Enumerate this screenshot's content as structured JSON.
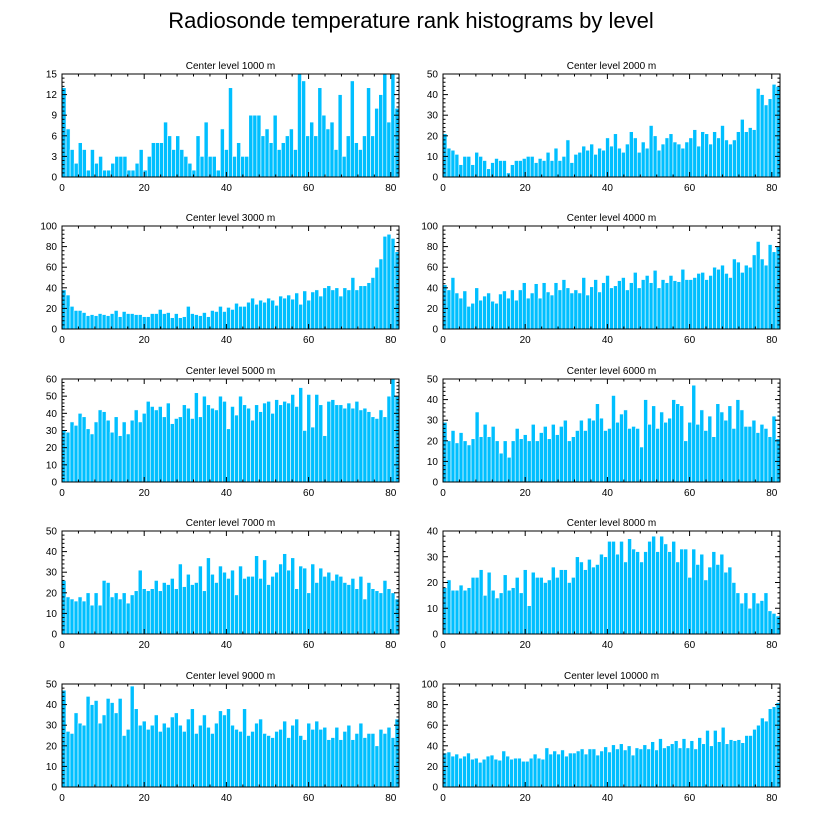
{
  "title": "Radiosonde temperature rank histograms by level",
  "bar_color": "#00bfff",
  "bar_edge_color": "#ffffff",
  "chart_data": [
    {
      "type": "bar",
      "title": "Center level 1000 m",
      "xlim": [
        0,
        82
      ],
      "ylim": [
        0,
        15
      ],
      "xticks": [
        0,
        20,
        40,
        60,
        80
      ],
      "yticks": [
        0,
        3,
        6,
        9,
        12,
        15
      ],
      "values": [
        13,
        7,
        4,
        2,
        5,
        4,
        1,
        4,
        2,
        3,
        1,
        1,
        2,
        3,
        3,
        3,
        1,
        1,
        2,
        4,
        1,
        3,
        5,
        5,
        5,
        8,
        6,
        4,
        6,
        4,
        3,
        2,
        1,
        6,
        3,
        8,
        3,
        3,
        1,
        7,
        4,
        13,
        3,
        5,
        3,
        3,
        9,
        9,
        9,
        6,
        7,
        5,
        9,
        4,
        5,
        6,
        7,
        4,
        15,
        14,
        6,
        8,
        6,
        13,
        9,
        7,
        8,
        4,
        12,
        3,
        6,
        14,
        5,
        4,
        6,
        13,
        6,
        10,
        12,
        15,
        8,
        15,
        10
      ]
    },
    {
      "type": "bar",
      "title": "Center level 2000 m",
      "xlim": [
        0,
        82
      ],
      "ylim": [
        0,
        50
      ],
      "xticks": [
        0,
        20,
        40,
        60,
        80
      ],
      "yticks": [
        0,
        10,
        20,
        30,
        40,
        50
      ],
      "values": [
        21,
        14,
        13,
        11,
        6,
        10,
        10,
        6,
        12,
        10,
        8,
        4,
        7,
        9,
        8,
        8,
        2,
        6,
        8,
        8,
        9,
        10,
        10,
        7,
        9,
        8,
        12,
        8,
        14,
        8,
        10,
        18,
        7,
        11,
        12,
        15,
        13,
        16,
        11,
        14,
        13,
        19,
        15,
        21,
        14,
        12,
        16,
        22,
        19,
        12,
        17,
        14,
        25,
        20,
        13,
        16,
        19,
        21,
        17,
        16,
        14,
        17,
        19,
        23,
        15,
        22,
        21,
        16,
        22,
        19,
        25,
        18,
        16,
        18,
        22,
        28,
        22,
        24,
        23,
        43,
        40,
        35,
        38,
        45,
        44
      ]
    },
    {
      "type": "bar",
      "title": "Center level 3000 m",
      "xlim": [
        0,
        82
      ],
      "ylim": [
        0,
        100
      ],
      "xticks": [
        0,
        20,
        40,
        60,
        80
      ],
      "yticks": [
        0,
        20,
        40,
        60,
        80,
        100
      ],
      "values": [
        38,
        33,
        22,
        18,
        18,
        16,
        13,
        14,
        13,
        15,
        14,
        13,
        15,
        18,
        12,
        17,
        15,
        15,
        14,
        14,
        12,
        12,
        15,
        15,
        19,
        15,
        16,
        11,
        15,
        11,
        12,
        22,
        15,
        14,
        13,
        16,
        12,
        18,
        17,
        22,
        17,
        21,
        19,
        25,
        22,
        22,
        26,
        30,
        24,
        28,
        26,
        30,
        28,
        23,
        32,
        30,
        33,
        29,
        35,
        24,
        37,
        28,
        36,
        38,
        32,
        40,
        42,
        38,
        40,
        32,
        40,
        38,
        50,
        38,
        42,
        42,
        45,
        50,
        60,
        68,
        90,
        92,
        88,
        75
      ]
    },
    {
      "type": "bar",
      "title": "Center level 4000 m",
      "xlim": [
        0,
        82
      ],
      "ylim": [
        0,
        100
      ],
      "xticks": [
        0,
        20,
        40,
        60,
        80
      ],
      "yticks": [
        0,
        20,
        40,
        60,
        80,
        100
      ],
      "values": [
        43,
        38,
        50,
        35,
        30,
        37,
        22,
        25,
        40,
        28,
        32,
        35,
        27,
        25,
        34,
        37,
        30,
        38,
        28,
        38,
        45,
        30,
        35,
        44,
        30,
        45,
        36,
        33,
        45,
        38,
        48,
        40,
        35,
        38,
        35,
        50,
        33,
        41,
        48,
        36,
        45,
        52,
        40,
        42,
        47,
        50,
        38,
        45,
        55,
        40,
        48,
        52,
        45,
        57,
        40,
        48,
        45,
        52,
        47,
        46,
        58,
        48,
        48,
        50,
        54,
        55,
        48,
        52,
        60,
        58,
        62,
        54,
        50,
        68,
        65,
        55,
        62,
        60,
        72,
        85,
        68,
        62,
        82,
        75,
        80
      ]
    },
    {
      "type": "bar",
      "title": "Center level 5000 m",
      "xlim": [
        0,
        82
      ],
      "ylim": [
        0,
        60
      ],
      "xticks": [
        0,
        20,
        40,
        60,
        80
      ],
      "yticks": [
        0,
        10,
        20,
        30,
        40,
        50,
        60
      ],
      "values": [
        30,
        29,
        35,
        33,
        40,
        38,
        31,
        28,
        35,
        42,
        41,
        36,
        29,
        38,
        27,
        35,
        28,
        36,
        42,
        35,
        40,
        47,
        44,
        42,
        44,
        38,
        46,
        34,
        37,
        38,
        45,
        43,
        37,
        52,
        38,
        50,
        45,
        43,
        42,
        50,
        47,
        31,
        44,
        39,
        50,
        45,
        43,
        36,
        45,
        41,
        46,
        47,
        40,
        48,
        45,
        47,
        46,
        51,
        44,
        55,
        30,
        51,
        32,
        51,
        45,
        27,
        47,
        48,
        45,
        45,
        43,
        46,
        43,
        47,
        42,
        43,
        41,
        38,
        37,
        42,
        38,
        50,
        60,
        50
      ]
    },
    {
      "type": "bar",
      "title": "Center level 6000 m",
      "xlim": [
        0,
        82
      ],
      "ylim": [
        0,
        50
      ],
      "xticks": [
        0,
        20,
        40,
        60,
        80
      ],
      "yticks": [
        0,
        10,
        20,
        30,
        40,
        50
      ],
      "values": [
        29,
        20,
        25,
        19,
        24,
        20,
        18,
        21,
        34,
        22,
        28,
        22,
        27,
        20,
        14,
        20,
        12,
        20,
        26,
        21,
        23,
        20,
        28,
        20,
        24,
        27,
        21,
        28,
        23,
        27,
        30,
        20,
        22,
        25,
        30,
        25,
        31,
        30,
        38,
        31,
        25,
        26,
        42,
        29,
        33,
        35,
        26,
        27,
        26,
        17,
        40,
        28,
        37,
        26,
        34,
        29,
        31,
        40,
        38,
        37,
        20,
        29,
        47,
        28,
        35,
        25,
        32,
        22,
        38,
        34,
        30,
        37,
        26,
        40,
        35,
        27,
        27,
        30,
        24,
        28,
        26,
        22,
        32,
        21
      ]
    },
    {
      "type": "bar",
      "title": "Center level 7000 m",
      "xlim": [
        0,
        82
      ],
      "ylim": [
        0,
        50
      ],
      "xticks": [
        0,
        20,
        40,
        60,
        80
      ],
      "yticks": [
        0,
        10,
        20,
        30,
        40,
        50
      ],
      "values": [
        26,
        18,
        17,
        16,
        18,
        16,
        20,
        14,
        20,
        14,
        26,
        25,
        18,
        20,
        17,
        20,
        15,
        19,
        21,
        31,
        22,
        21,
        22,
        26,
        21,
        25,
        24,
        27,
        22,
        34,
        23,
        29,
        24,
        25,
        33,
        21,
        37,
        29,
        25,
        33,
        30,
        27,
        31,
        19,
        33,
        27,
        28,
        28,
        38,
        27,
        36,
        24,
        28,
        30,
        34,
        39,
        31,
        37,
        22,
        33,
        32,
        20,
        34,
        25,
        32,
        28,
        30,
        26,
        29,
        28,
        25,
        24,
        27,
        22,
        28,
        17,
        25,
        22,
        21,
        20,
        26,
        22,
        20,
        17
      ]
    },
    {
      "type": "bar",
      "title": "Center level 8000 m",
      "xlim": [
        0,
        82
      ],
      "ylim": [
        0,
        40
      ],
      "xticks": [
        0,
        20,
        40,
        60,
        80
      ],
      "yticks": [
        0,
        10,
        20,
        30,
        40
      ],
      "values": [
        18,
        21,
        17,
        17,
        19,
        17,
        18,
        22,
        22,
        25,
        15,
        24,
        17,
        14,
        16,
        23,
        17,
        18,
        22,
        16,
        25,
        11,
        24,
        22,
        22,
        20,
        21,
        26,
        22,
        25,
        25,
        20,
        22,
        30,
        28,
        25,
        29,
        26,
        27,
        31,
        30,
        36,
        36,
        31,
        36,
        28,
        37,
        33,
        32,
        28,
        32,
        36,
        38,
        32,
        38,
        35,
        32,
        36,
        28,
        33,
        33,
        22,
        33,
        27,
        31,
        21,
        26,
        32,
        27,
        31,
        24,
        26,
        20,
        16,
        12,
        16,
        10,
        16,
        12,
        13,
        16,
        9,
        8,
        7
      ]
    },
    {
      "type": "bar",
      "title": "Center level 9000 m",
      "xlim": [
        0,
        82
      ],
      "ylim": [
        0,
        50
      ],
      "xticks": [
        0,
        20,
        40,
        60,
        80
      ],
      "yticks": [
        0,
        10,
        20,
        30,
        40,
        50
      ],
      "values": [
        47,
        27,
        26,
        36,
        31,
        30,
        44,
        40,
        42,
        31,
        35,
        43,
        41,
        36,
        43,
        25,
        28,
        49,
        38,
        30,
        32,
        28,
        30,
        35,
        27,
        31,
        29,
        34,
        36,
        30,
        27,
        33,
        38,
        26,
        30,
        35,
        29,
        26,
        31,
        37,
        35,
        38,
        30,
        28,
        27,
        38,
        25,
        27,
        31,
        33,
        26,
        25,
        24,
        27,
        28,
        32,
        24,
        30,
        33,
        25,
        23,
        31,
        28,
        32,
        28,
        29,
        23,
        24,
        29,
        23,
        27,
        30,
        23,
        26,
        31,
        24,
        26,
        26,
        20,
        28,
        26,
        29,
        24,
        33
      ]
    },
    {
      "type": "bar",
      "title": "Center level 10000 m",
      "xlim": [
        0,
        82
      ],
      "ylim": [
        0,
        100
      ],
      "xticks": [
        0,
        20,
        40,
        60,
        80
      ],
      "yticks": [
        0,
        20,
        40,
        60,
        80,
        100
      ],
      "values": [
        33,
        34,
        30,
        32,
        28,
        30,
        33,
        27,
        28,
        24,
        27,
        30,
        31,
        27,
        26,
        35,
        30,
        27,
        28,
        28,
        25,
        25,
        28,
        32,
        28,
        27,
        38,
        32,
        35,
        32,
        36,
        30,
        33,
        33,
        35,
        37,
        32,
        37,
        37,
        31,
        35,
        39,
        34,
        41,
        37,
        42,
        36,
        40,
        31,
        38,
        37,
        41,
        37,
        44,
        36,
        47,
        38,
        40,
        42,
        45,
        38,
        47,
        38,
        45,
        37,
        48,
        42,
        55,
        40,
        55,
        44,
        58,
        42,
        46,
        45,
        46,
        43,
        50,
        50,
        56,
        60,
        67,
        64,
        76,
        78,
        82
      ]
    }
  ]
}
